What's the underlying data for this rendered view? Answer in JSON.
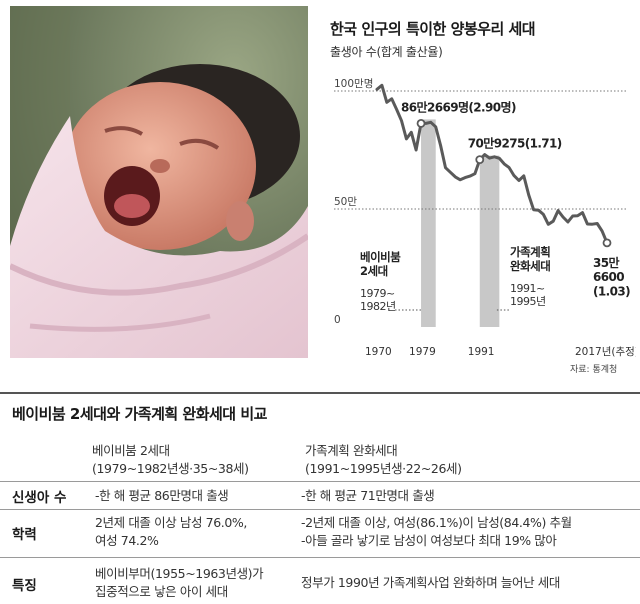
{
  "chart_data": {
    "type": "line",
    "title": "한국 인구의 특이한 양봉우리 세대",
    "subtitle": "출생아 수(합계 출산율)",
    "x_tick_labels": [
      "1970",
      "1979",
      "1991",
      "2017년(추정)"
    ],
    "y_tick_labels": [
      "100만명",
      "50만",
      "0"
    ],
    "ylim": [
      0,
      1000000
    ],
    "xlim": [
      1970,
      2017
    ],
    "series": [
      {
        "x": [
          1970,
          1971,
          1972,
          1973,
          1974,
          1975,
          1976,
          1977,
          1978,
          1979,
          1980,
          1981,
          1982,
          1983,
          1984,
          1985,
          1986,
          1987,
          1988,
          1989,
          1990,
          1991,
          1992,
          1993,
          1994,
          1995,
          1996,
          1997,
          1998,
          1999,
          2000,
          2001,
          2002,
          2003,
          2004,
          2005,
          2006,
          2007,
          2008,
          2009,
          2010,
          2011,
          2012,
          2013,
          2014,
          2015,
          2016,
          2017
        ],
        "values": [
          1007000,
          1024000,
          952000,
          967000,
          922000,
          874000,
          797000,
          825000,
          750000,
          862669,
          862835,
          867409,
          848312,
          769155,
          674793,
          655489,
          636019,
          623831,
          633092,
          639431,
          649738,
          709275,
          730678,
          715826,
          721185,
          715020,
          691226,
          675394,
          641594,
          620668,
          640089,
          559934,
          496911,
          495036,
          476958,
          435031,
          448153,
          493189,
          465892,
          444849,
          470171,
          471265,
          484550,
          436455,
          435435,
          438420,
          406243,
          356600
        ]
      }
    ],
    "highlights": [
      {
        "from": 1979,
        "to": 1982,
        "label": "베이비붐\n2세대",
        "years": "1979~\n1982년"
      },
      {
        "from": 1991,
        "to": 1995,
        "label": "가족계획\n완화세대",
        "years": "1991~\n1995년"
      }
    ],
    "annotations": [
      {
        "x": 1979,
        "text": "86만2669명(2.90명)"
      },
      {
        "x": 1991,
        "text": "70만9275(1.71)"
      },
      {
        "x": 2017,
        "text": "35만\n6600\n(1.03)"
      }
    ],
    "colors": {
      "line": "#5a5a5a",
      "band": "#c8c8c8",
      "gridline": "#777777"
    }
  },
  "source": "자료: 통계청",
  "comparison": {
    "title": "베이비붐 2세대와 가족계획 완화세대 비교",
    "columns": [
      {
        "name": "베이비붐 2세대",
        "detail": "(1979~1982년생·35~38세)"
      },
      {
        "name": "가족계획 완화세대",
        "detail": "(1991~1995년생·22~26세)"
      }
    ],
    "rows": [
      {
        "label": "신생아 수",
        "col1": [
          "-한 해 평균 86만명대 출생"
        ],
        "col2": [
          "-한 해 평균 71만명대 출생"
        ]
      },
      {
        "label": "학력",
        "col1": [
          "2년제 대졸 이상 남성 76.0%,",
          "여성 74.2%"
        ],
        "col2": [
          "-2년제 대졸 이상, 여성(86.1%)이 남성(84.4%) 추월",
          "-아들 골라 낳기로 남성이 여성보다 최대 19% 많아"
        ]
      },
      {
        "label": "특징",
        "col1": [
          "베이비부머(1955~1963년생)가",
          "집중적으로 낳은 아이 세대"
        ],
        "col2": [
          "정부가 1990년 가족계획사업 완화하며 늘어난 세대"
        ]
      }
    ]
  }
}
